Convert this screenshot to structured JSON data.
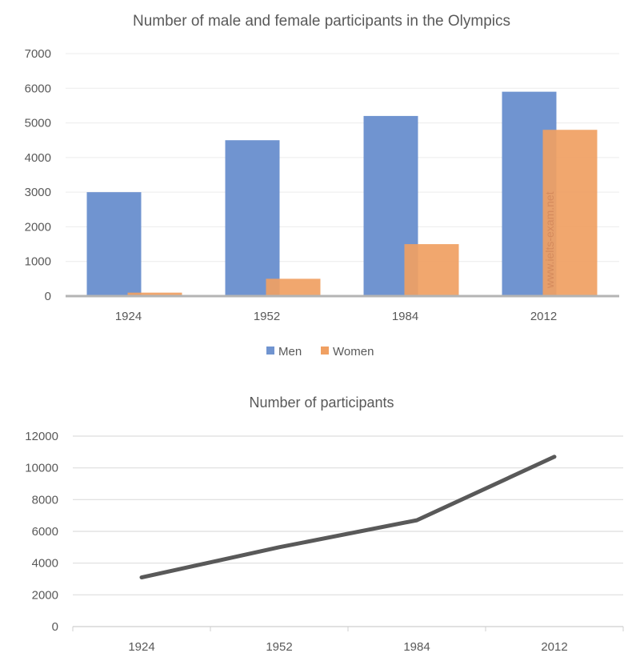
{
  "watermark": "www.ielts-exam.net",
  "chart_data": [
    {
      "type": "bar",
      "title": "Number of male and female participants in the Olympics",
      "categories": [
        "1924",
        "1952",
        "1984",
        "2012"
      ],
      "series": [
        {
          "name": "Men",
          "values": [
            3000,
            4500,
            5200,
            5900
          ],
          "color": "#7094d0"
        },
        {
          "name": "Women",
          "values": [
            100,
            500,
            1500,
            4800
          ],
          "color": "#f0a062"
        }
      ],
      "ylim": [
        0,
        7000
      ],
      "yticks": [
        "0",
        "1000",
        "2000",
        "3000",
        "4000",
        "5000",
        "6000",
        "7000"
      ],
      "grid": true,
      "legend": "bottom"
    },
    {
      "type": "line",
      "title": "Number of participants",
      "categories": [
        "1924",
        "1952",
        "1984",
        "2012"
      ],
      "series": [
        {
          "values": [
            3100,
            5000,
            6700,
            10700
          ],
          "color": "#595959"
        }
      ],
      "ylim": [
        0,
        12000
      ],
      "yticks": [
        "0",
        "2000",
        "4000",
        "6000",
        "8000",
        "10000",
        "12000"
      ],
      "grid": true,
      "legend": "none"
    }
  ]
}
